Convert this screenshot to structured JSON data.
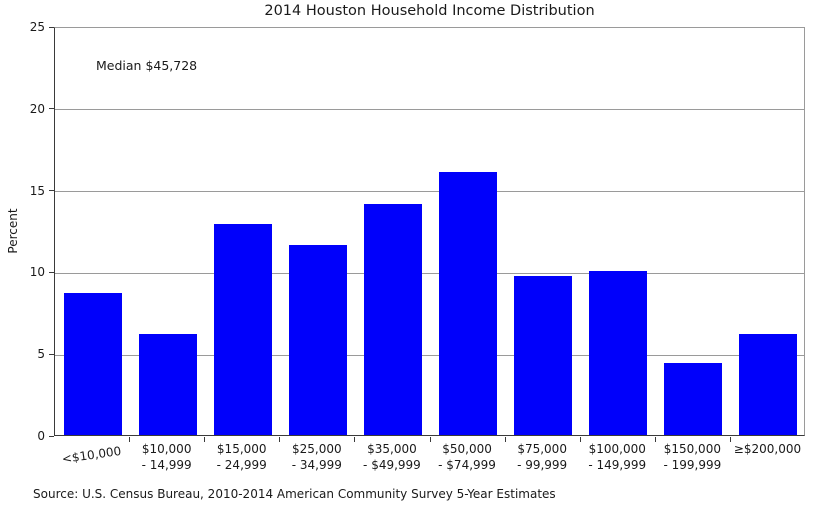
{
  "chart_data": {
    "type": "bar",
    "title": "2014 Houston Household Income Distribution",
    "annotation": "Median $45,728",
    "ylabel": "Percent",
    "xlabel": "",
    "ylim": [
      0,
      25
    ],
    "ytick_step": 5,
    "grid": "horizontal",
    "legend": "none",
    "bar_color": "#0000fb",
    "categories": [
      "<$10,000",
      "$10,000 - 14,999",
      "$15,000 - 24,999",
      "$25,000 - 34,999",
      "$35,000 - $49,999",
      "$50,000 - $74,999",
      "$75,000 - 99,999",
      "$100,000 - 149,999",
      "$150,000 - 199,999",
      "≥$200,000"
    ],
    "category_lines": [
      [
        "<$10,000"
      ],
      [
        "$10,000",
        "- 14,999"
      ],
      [
        "$15,000",
        "- 24,999"
      ],
      [
        "$25,000",
        "- 34,999"
      ],
      [
        "$35,000",
        "- $49,999"
      ],
      [
        "$50,000",
        "- $74,999"
      ],
      [
        "$75,000",
        "- 99,999"
      ],
      [
        "$100,000",
        "- 149,999"
      ],
      [
        "$150,000",
        "- 199,999"
      ],
      [
        "≥$200,000"
      ]
    ],
    "values": [
      8.7,
      6.2,
      12.9,
      11.6,
      14.1,
      16.1,
      9.7,
      10.0,
      4.4,
      6.2
    ],
    "source": "Source: U.S. Census Bureau, 2010-2014 American Community Survey 5-Year Estimates"
  }
}
